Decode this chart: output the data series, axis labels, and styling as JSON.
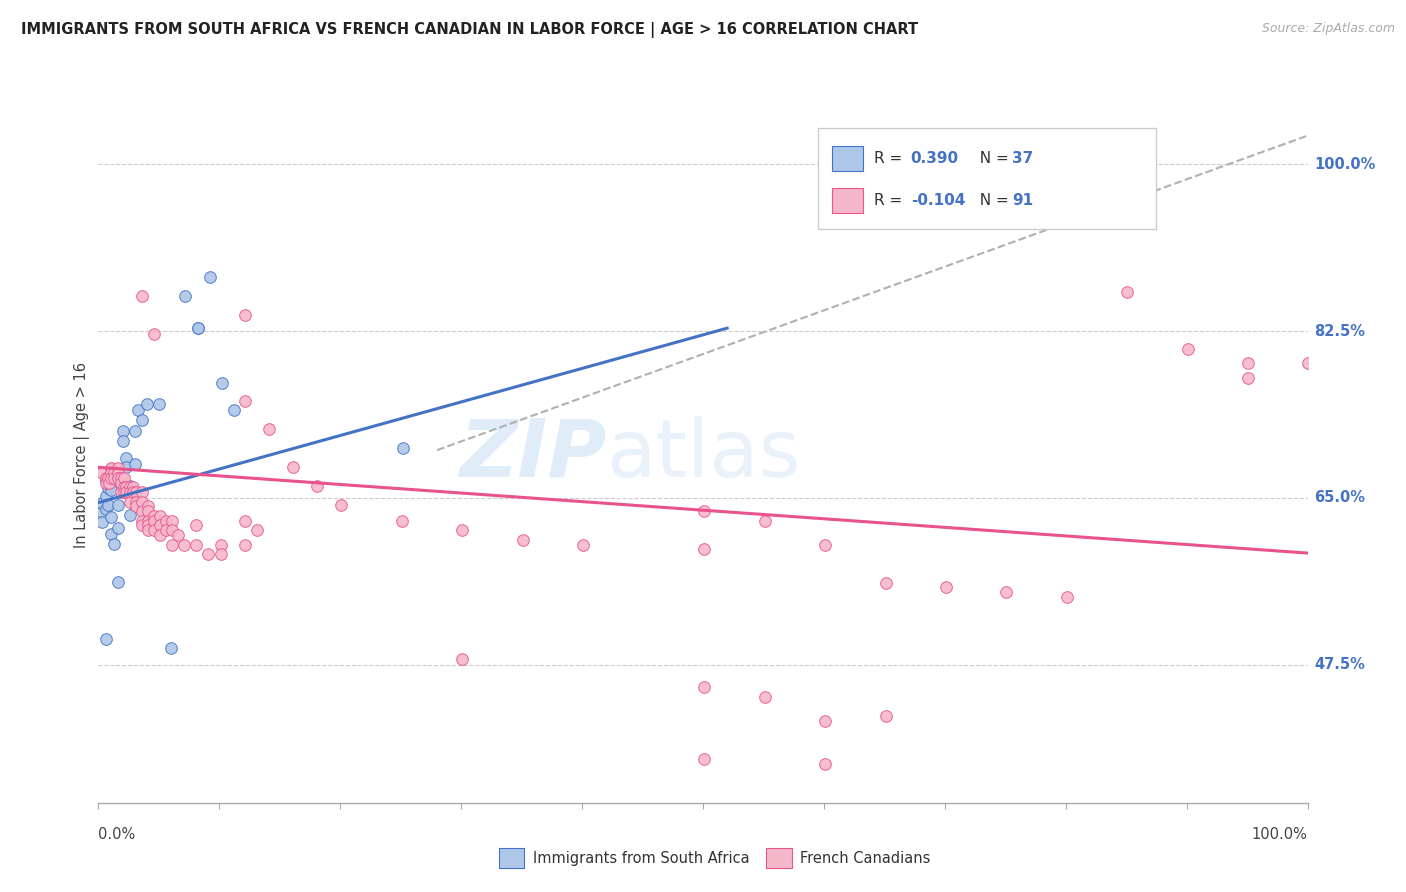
{
  "title": "IMMIGRANTS FROM SOUTH AFRICA VS FRENCH CANADIAN IN LABOR FORCE | AGE > 16 CORRELATION CHART",
  "source": "Source: ZipAtlas.com",
  "ylabel": "In Labor Force | Age > 16",
  "ytick_labels": [
    "100.0%",
    "82.5%",
    "65.0%",
    "47.5%"
  ],
  "ytick_values": [
    1.0,
    0.825,
    0.65,
    0.475
  ],
  "xlim": [
    0.0,
    1.0
  ],
  "ylim": [
    0.33,
    1.06
  ],
  "color_blue": "#aec6e8",
  "color_pink": "#f5b8cb",
  "line_blue": "#4472c4",
  "line_pink": "#e8538c",
  "line_gray_dashed": "#b0b0b0",
  "watermark_zip": "ZIP",
  "watermark_atlas": "atlas",
  "blue_scatter": [
    [
      0.003,
      0.635
    ],
    [
      0.003,
      0.645
    ],
    [
      0.003,
      0.625
    ],
    [
      0.006,
      0.652
    ],
    [
      0.006,
      0.668
    ],
    [
      0.006,
      0.638
    ],
    [
      0.008,
      0.66
    ],
    [
      0.008,
      0.642
    ],
    [
      0.01,
      0.658
    ],
    [
      0.01,
      0.68
    ],
    [
      0.01,
      0.63
    ],
    [
      0.01,
      0.612
    ],
    [
      0.013,
      0.602
    ],
    [
      0.016,
      0.618
    ],
    [
      0.016,
      0.642
    ],
    [
      0.02,
      0.72
    ],
    [
      0.02,
      0.71
    ],
    [
      0.023,
      0.692
    ],
    [
      0.023,
      0.682
    ],
    [
      0.026,
      0.662
    ],
    [
      0.026,
      0.632
    ],
    [
      0.03,
      0.685
    ],
    [
      0.03,
      0.72
    ],
    [
      0.033,
      0.742
    ],
    [
      0.036,
      0.732
    ],
    [
      0.04,
      0.748
    ],
    [
      0.05,
      0.748
    ],
    [
      0.016,
      0.562
    ],
    [
      0.006,
      0.502
    ],
    [
      0.06,
      0.492
    ],
    [
      0.072,
      0.862
    ],
    [
      0.082,
      0.828
    ],
    [
      0.082,
      0.828
    ],
    [
      0.092,
      0.882
    ],
    [
      0.102,
      0.77
    ],
    [
      0.112,
      0.742
    ],
    [
      0.252,
      0.702
    ]
  ],
  "pink_scatter": [
    [
      0.003,
      0.676
    ],
    [
      0.006,
      0.671
    ],
    [
      0.006,
      0.666
    ],
    [
      0.008,
      0.671
    ],
    [
      0.009,
      0.666
    ],
    [
      0.01,
      0.681
    ],
    [
      0.01,
      0.676
    ],
    [
      0.01,
      0.671
    ],
    [
      0.013,
      0.676
    ],
    [
      0.013,
      0.671
    ],
    [
      0.016,
      0.681
    ],
    [
      0.016,
      0.676
    ],
    [
      0.016,
      0.671
    ],
    [
      0.019,
      0.671
    ],
    [
      0.019,
      0.666
    ],
    [
      0.019,
      0.656
    ],
    [
      0.021,
      0.671
    ],
    [
      0.021,
      0.661
    ],
    [
      0.021,
      0.656
    ],
    [
      0.023,
      0.661
    ],
    [
      0.023,
      0.656
    ],
    [
      0.026,
      0.661
    ],
    [
      0.026,
      0.656
    ],
    [
      0.026,
      0.646
    ],
    [
      0.029,
      0.661
    ],
    [
      0.029,
      0.656
    ],
    [
      0.031,
      0.656
    ],
    [
      0.031,
      0.646
    ],
    [
      0.031,
      0.641
    ],
    [
      0.036,
      0.656
    ],
    [
      0.036,
      0.646
    ],
    [
      0.036,
      0.636
    ],
    [
      0.036,
      0.626
    ],
    [
      0.036,
      0.621
    ],
    [
      0.041,
      0.641
    ],
    [
      0.041,
      0.636
    ],
    [
      0.041,
      0.626
    ],
    [
      0.041,
      0.621
    ],
    [
      0.041,
      0.616
    ],
    [
      0.046,
      0.631
    ],
    [
      0.046,
      0.626
    ],
    [
      0.046,
      0.616
    ],
    [
      0.051,
      0.631
    ],
    [
      0.051,
      0.621
    ],
    [
      0.051,
      0.611
    ],
    [
      0.056,
      0.626
    ],
    [
      0.056,
      0.616
    ],
    [
      0.061,
      0.626
    ],
    [
      0.061,
      0.616
    ],
    [
      0.061,
      0.601
    ],
    [
      0.066,
      0.611
    ],
    [
      0.071,
      0.601
    ],
    [
      0.081,
      0.621
    ],
    [
      0.081,
      0.601
    ],
    [
      0.091,
      0.591
    ],
    [
      0.101,
      0.601
    ],
    [
      0.101,
      0.591
    ],
    [
      0.121,
      0.601
    ],
    [
      0.121,
      0.626
    ],
    [
      0.131,
      0.616
    ],
    [
      0.036,
      0.862
    ],
    [
      0.046,
      0.822
    ],
    [
      0.121,
      0.842
    ],
    [
      0.121,
      0.752
    ],
    [
      0.141,
      0.722
    ],
    [
      0.161,
      0.682
    ],
    [
      0.181,
      0.662
    ],
    [
      0.201,
      0.642
    ],
    [
      0.251,
      0.626
    ],
    [
      0.301,
      0.616
    ],
    [
      0.351,
      0.606
    ],
    [
      0.401,
      0.601
    ],
    [
      0.501,
      0.636
    ],
    [
      0.501,
      0.596
    ],
    [
      0.551,
      0.626
    ],
    [
      0.601,
      0.601
    ],
    [
      0.651,
      0.561
    ],
    [
      0.701,
      0.556
    ],
    [
      0.751,
      0.551
    ],
    [
      0.801,
      0.546
    ],
    [
      0.851,
      0.866
    ],
    [
      0.901,
      0.806
    ],
    [
      0.951,
      0.776
    ],
    [
      0.301,
      0.481
    ],
    [
      0.501,
      0.451
    ],
    [
      0.551,
      0.441
    ],
    [
      0.601,
      0.416
    ],
    [
      0.651,
      0.421
    ],
    [
      0.501,
      0.376
    ],
    [
      0.601,
      0.371
    ],
    [
      0.951,
      0.791
    ],
    [
      1.0,
      0.791
    ]
  ],
  "blue_line_x": [
    0.0,
    0.52
  ],
  "blue_line_y": [
    0.645,
    0.828
  ],
  "pink_line_x": [
    0.0,
    1.0
  ],
  "pink_line_y": [
    0.682,
    0.592
  ],
  "gray_line_x": [
    0.28,
    1.0
  ],
  "gray_line_y": [
    0.7,
    1.03
  ]
}
